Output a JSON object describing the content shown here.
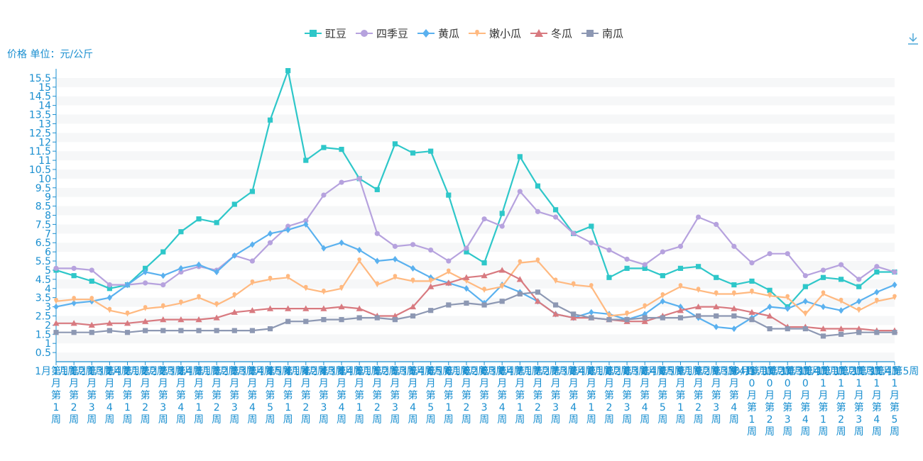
{
  "chart_data": {
    "type": "line",
    "ylabel": "价格 单位：元/公斤",
    "ylim": [
      0,
      16
    ],
    "ytick_step": 0.5,
    "ytick_labels": [
      "0.5",
      "1",
      "1.5",
      "2",
      "2.5",
      "3",
      "3.5",
      "4",
      "4.5",
      "5",
      "5.5",
      "6",
      "6.5",
      "7",
      "7.5",
      "8",
      "8.5",
      "9",
      "9.5",
      "10",
      "10.5",
      "11",
      "11.5",
      "12",
      "12.5",
      "13",
      "13.5",
      "14",
      "14.5",
      "15",
      "15.5"
    ],
    "legend_position": "top-center",
    "categories": [
      "1月第1周",
      "1月第2周",
      "1月第3周",
      "1月第4周",
      "2月第1周",
      "2月第2周",
      "2月第3周",
      "2月第4周",
      "3月第1周",
      "3月第2周",
      "3月第3周",
      "3月第4周",
      "3月第5周",
      "4月第1周",
      "4月第2周",
      "4月第3周",
      "4月第4周",
      "5月第1周",
      "5月第2周",
      "5月第3周",
      "5月第4周",
      "5月第5周",
      "6月第1周",
      "6月第2周",
      "6月第3周",
      "6月第4周",
      "7月第1周",
      "7月第2周",
      "7月第3周",
      "7月第4周",
      "8月第1周",
      "8月第2周",
      "8月第3周",
      "8月第4周",
      "8月第5周",
      "9月第1周",
      "9月第2周",
      "9月第3周",
      "9月第4周",
      "10月第1周",
      "10月第2周",
      "10月第3周",
      "10月第4周",
      "11月第1周",
      "11月第2周",
      "11月第3周",
      "11月第4周",
      "11月第5周"
    ],
    "series": [
      {
        "name": "豇豆",
        "color": "#2ec7c9",
        "marker": "square",
        "values": [
          5.0,
          4.7,
          4.4,
          4.0,
          4.2,
          5.1,
          6.0,
          7.1,
          7.8,
          7.6,
          8.6,
          9.3,
          13.2,
          15.9,
          11.0,
          11.7,
          11.6,
          10.0,
          9.4,
          11.9,
          11.4,
          11.5,
          9.1,
          6.0,
          5.4,
          8.1,
          11.2,
          9.6,
          8.3,
          7.0,
          7.4,
          4.6,
          5.1,
          5.1,
          4.7,
          5.1,
          5.2,
          4.6,
          4.2,
          4.4,
          3.9,
          3.0,
          4.1,
          4.6,
          4.5,
          4.1,
          4.9,
          4.9
        ]
      },
      {
        "name": "四季豆",
        "color": "#b6a2de",
        "marker": "circle",
        "values": [
          5.1,
          5.1,
          5.0,
          4.2,
          4.2,
          4.3,
          4.2,
          4.9,
          5.2,
          5.0,
          5.8,
          5.5,
          6.5,
          7.4,
          7.7,
          9.1,
          9.8,
          10.0,
          7.0,
          6.3,
          6.4,
          6.1,
          5.5,
          6.2,
          7.8,
          7.4,
          9.3,
          8.2,
          7.9,
          7.0,
          6.5,
          6.1,
          5.6,
          5.3,
          6.0,
          6.3,
          7.9,
          7.5,
          6.3,
          5.4,
          5.9,
          5.9,
          4.7,
          5.0,
          5.3,
          4.5,
          5.2,
          4.9
        ]
      },
      {
        "name": "黄瓜",
        "color": "#5ab1ef",
        "marker": "diamond",
        "values": [
          3.0,
          3.2,
          3.3,
          3.5,
          4.2,
          4.9,
          4.7,
          5.1,
          5.3,
          4.9,
          5.8,
          6.4,
          7.0,
          7.2,
          7.5,
          6.2,
          6.5,
          6.1,
          5.5,
          5.6,
          5.1,
          4.6,
          4.3,
          4.0,
          3.2,
          4.2,
          3.8,
          3.3,
          2.6,
          2.4,
          2.7,
          2.6,
          2.3,
          2.6,
          3.3,
          3.0,
          2.4,
          1.9,
          1.8,
          2.4,
          3.0,
          2.9,
          3.3,
          3.0,
          2.8,
          3.3,
          3.8,
          4.2
        ]
      },
      {
        "name": "嫩小瓜",
        "color": "#ffb980",
        "marker": "pin",
        "values": [
          3.3,
          3.4,
          3.4,
          2.8,
          2.6,
          2.9,
          3.0,
          3.2,
          3.5,
          3.1,
          3.6,
          4.3,
          4.5,
          4.6,
          4.0,
          3.8,
          4.0,
          5.5,
          4.2,
          4.6,
          4.4,
          4.4,
          4.9,
          4.4,
          3.9,
          4.1,
          5.4,
          5.5,
          4.4,
          4.2,
          4.1,
          2.5,
          2.6,
          3.0,
          3.6,
          4.1,
          3.9,
          3.7,
          3.7,
          3.8,
          3.6,
          3.5,
          2.6,
          3.7,
          3.3,
          2.8,
          3.3,
          3.5
        ]
      },
      {
        "name": "冬瓜",
        "color": "#d87a80",
        "marker": "triangle",
        "values": [
          2.1,
          2.1,
          2.0,
          2.1,
          2.1,
          2.2,
          2.3,
          2.3,
          2.3,
          2.4,
          2.7,
          2.8,
          2.9,
          2.9,
          2.9,
          2.9,
          3.0,
          2.9,
          2.5,
          2.5,
          3.0,
          4.1,
          4.3,
          4.6,
          4.7,
          5.0,
          4.5,
          3.3,
          2.6,
          2.4,
          2.4,
          2.3,
          2.2,
          2.2,
          2.5,
          2.8,
          3.0,
          3.0,
          2.9,
          2.7,
          2.5,
          1.9,
          1.9,
          1.8,
          1.8,
          1.8,
          1.7,
          1.7
        ]
      },
      {
        "name": "南瓜",
        "color": "#8d98b3",
        "marker": "square",
        "values": [
          1.6,
          1.6,
          1.6,
          1.7,
          1.6,
          1.7,
          1.7,
          1.7,
          1.7,
          1.7,
          1.7,
          1.7,
          1.8,
          2.2,
          2.2,
          2.3,
          2.3,
          2.4,
          2.4,
          2.3,
          2.5,
          2.8,
          3.1,
          3.2,
          3.1,
          3.3,
          3.7,
          3.8,
          3.1,
          2.6,
          2.4,
          2.3,
          2.3,
          2.4,
          2.4,
          2.4,
          2.5,
          2.5,
          2.5,
          2.3,
          1.8,
          1.8,
          1.8,
          1.4,
          1.5,
          1.6,
          1.6,
          1.6
        ]
      }
    ]
  },
  "toolbar": {
    "download_icon": "download-icon"
  }
}
